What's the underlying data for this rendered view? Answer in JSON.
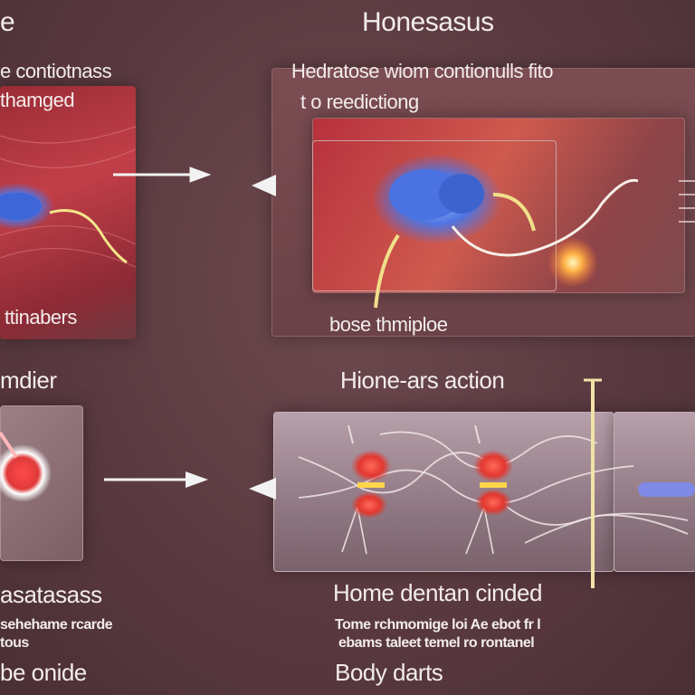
{
  "title": "Honesasus",
  "top_left": {
    "heading_line1": "e contiotnass",
    "heading_line2": "thamged",
    "caption": "ttinabers",
    "partial_top": "e"
  },
  "top_right": {
    "heading_line1": "Hedratose wiom contionulls fito",
    "heading_line2": "t o reedictiong",
    "caption": "bose thmiploe"
  },
  "middle": {
    "left_heading": "mdier",
    "right_heading": "Hione-ars action"
  },
  "bottom_left": {
    "heading": "asatasass",
    "line1": "sehehame rcarde",
    "line2": "tous",
    "line3": "be onide"
  },
  "bottom_right": {
    "heading": "Home dentan cinded",
    "line1": "Tome rchmomige loi Ae ebot fr l",
    "line2": "ebams taleet temel ro rontanel",
    "line3": "Body darts"
  },
  "colors": {
    "accent_red": "#c23f48",
    "glow_blue": "#6a8cf2",
    "glow_orange": "#ffb347"
  }
}
